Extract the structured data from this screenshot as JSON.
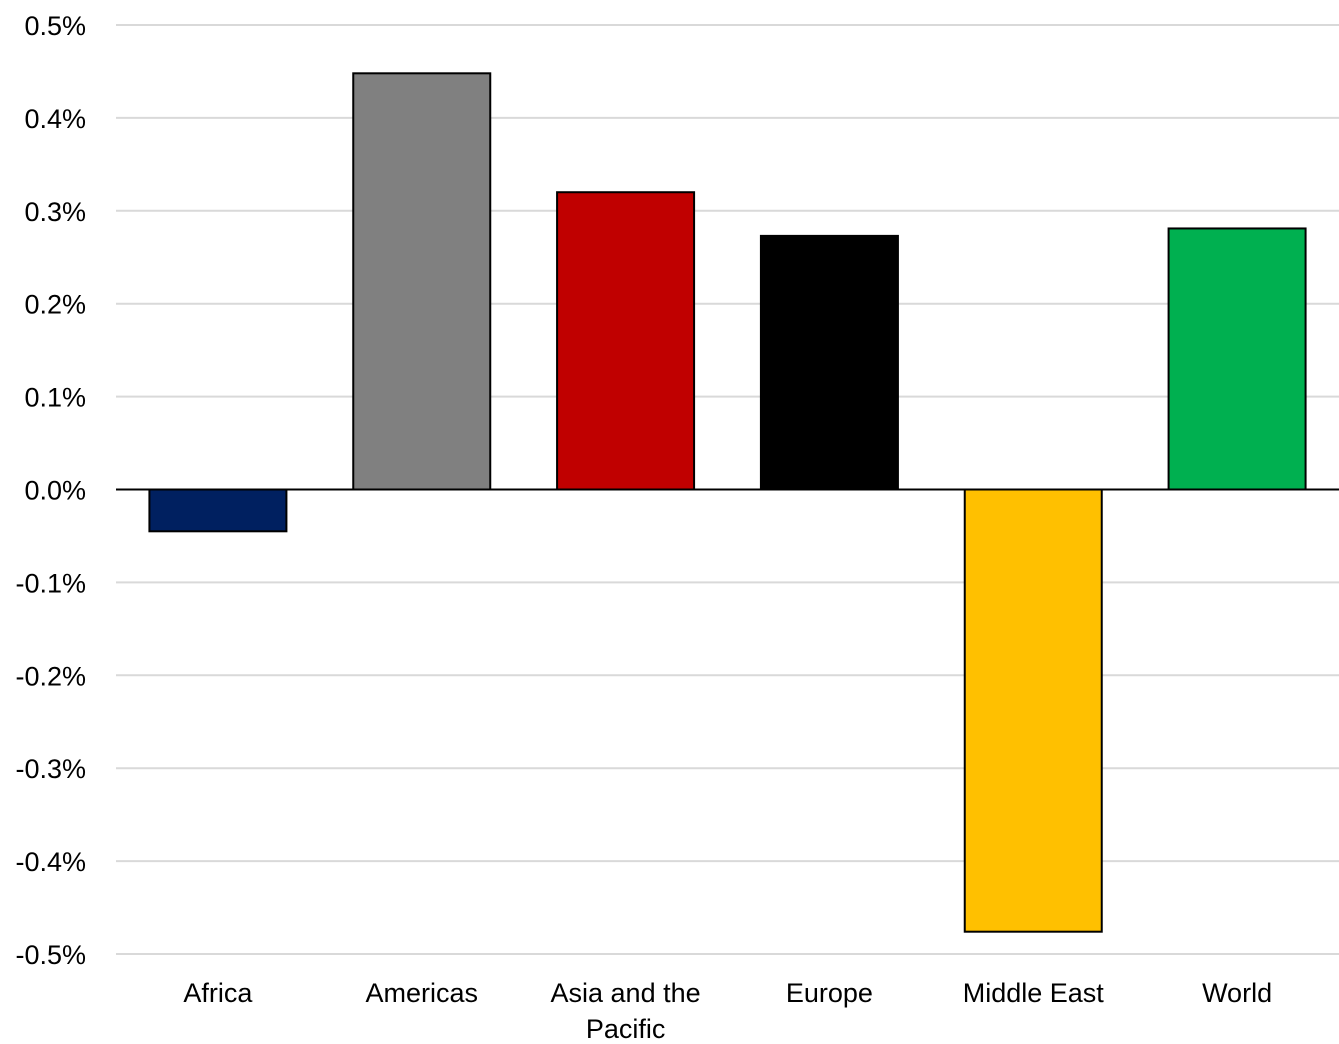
{
  "chart_data": {
    "type": "bar",
    "title": "",
    "xlabel": "",
    "ylabel": "",
    "categories": [
      [
        "Africa"
      ],
      [
        "Americas"
      ],
      [
        "Asia and the",
        "Pacific"
      ],
      [
        "Europe"
      ],
      [
        "Middle East"
      ],
      [
        "World"
      ]
    ],
    "values": [
      -0.045,
      0.448,
      0.32,
      0.273,
      -0.476,
      0.281
    ],
    "value_unit": "%",
    "colors": [
      "#002060",
      "#808080",
      "#c00000",
      "#000000",
      "#ffc000",
      "#00b050"
    ],
    "ylim": [
      -0.5,
      0.5
    ],
    "yticks": [
      0.5,
      0.4,
      0.3,
      0.2,
      0.1,
      0.0,
      -0.1,
      -0.2,
      -0.3,
      -0.4,
      -0.5
    ],
    "ytick_labels": [
      "0.5%",
      "0.4%",
      "0.3%",
      "0.2%",
      "0.1%",
      "0.0%",
      "-0.1%",
      "-0.2%",
      "-0.3%",
      "-0.4%",
      "-0.5%"
    ],
    "grid": true,
    "legend": "none"
  }
}
